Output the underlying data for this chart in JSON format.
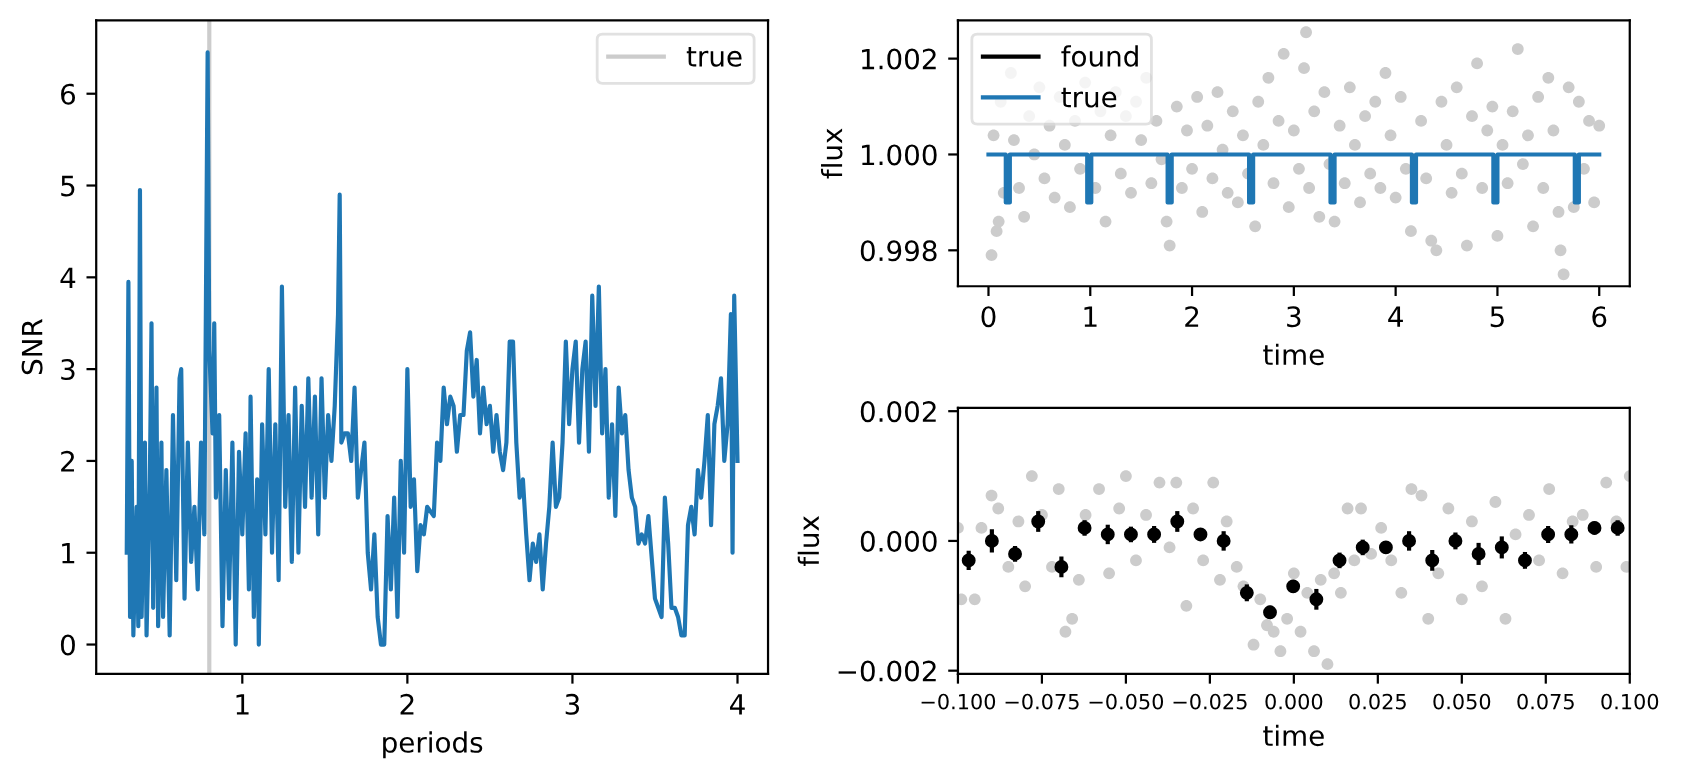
{
  "chart_data": [
    {
      "type": "line",
      "xlabel": "periods",
      "ylabel": "SNR",
      "xlim": [
        0.115,
        4.185
      ],
      "ylim": [
        -0.32,
        6.8
      ],
      "xticks": [
        1,
        2,
        3,
        4
      ],
      "yticks": [
        0,
        1,
        2,
        3,
        4,
        5,
        6
      ],
      "legend": "top right",
      "series": [
        {
          "name": "true",
          "color": "#cccccc",
          "x": [
            0.8,
            0.8
          ],
          "values": [
            -0.32,
            6.8
          ]
        },
        {
          "color": "#1f77b4",
          "x": [
            0.3,
            0.31,
            0.32,
            0.33,
            0.34,
            0.36,
            0.37,
            0.38,
            0.39,
            0.41,
            0.42,
            0.44,
            0.45,
            0.46,
            0.48,
            0.49,
            0.51,
            0.52,
            0.54,
            0.56,
            0.58,
            0.6,
            0.62,
            0.63,
            0.65,
            0.67,
            0.69,
            0.71,
            0.73,
            0.75,
            0.77,
            0.79,
            0.8,
            0.82,
            0.83,
            0.84,
            0.86,
            0.88,
            0.9,
            0.92,
            0.94,
            0.96,
            0.98,
            1.0,
            1.02,
            1.04,
            1.05,
            1.07,
            1.09,
            1.1,
            1.12,
            1.14,
            1.16,
            1.18,
            1.2,
            1.22,
            1.24,
            1.26,
            1.28,
            1.3,
            1.32,
            1.34,
            1.36,
            1.38,
            1.4,
            1.42,
            1.44,
            1.46,
            1.48,
            1.5,
            1.52,
            1.54,
            1.56,
            1.58,
            1.59,
            1.6,
            1.62,
            1.64,
            1.66,
            1.68,
            1.7,
            1.72,
            1.74,
            1.76,
            1.78,
            1.8,
            1.82,
            1.84,
            1.86,
            1.88,
            1.9,
            1.92,
            1.94,
            1.96,
            1.98,
            2.0,
            2.02,
            2.04,
            2.06,
            2.08,
            2.1,
            2.12,
            2.16,
            2.18,
            2.2,
            2.22,
            2.24,
            2.26,
            2.28,
            2.3,
            2.32,
            2.34,
            2.36,
            2.38,
            2.4,
            2.42,
            2.44,
            2.46,
            2.48,
            2.5,
            2.52,
            2.54,
            2.56,
            2.58,
            2.6,
            2.62,
            2.64,
            2.66,
            2.68,
            2.7,
            2.72,
            2.74,
            2.76,
            2.78,
            2.8,
            2.82,
            2.84,
            2.86,
            2.88,
            2.9,
            2.92,
            2.94,
            2.96,
            2.98,
            3.0,
            3.02,
            3.04,
            3.06,
            3.08,
            3.1,
            3.12,
            3.14,
            3.16,
            3.18,
            3.2,
            3.22,
            3.24,
            3.26,
            3.28,
            3.3,
            3.32,
            3.34,
            3.36,
            3.38,
            3.4,
            3.42,
            3.44,
            3.46,
            3.5,
            3.52,
            3.54,
            3.56,
            3.58,
            3.6,
            3.62,
            3.64,
            3.66,
            3.68,
            3.7,
            3.72,
            3.74,
            3.76,
            3.78,
            3.8,
            3.82,
            3.84,
            3.86,
            3.88,
            3.9,
            3.92,
            3.94,
            3.96,
            3.97,
            3.98,
            4.0
          ],
          "values": [
            1.0,
            3.95,
            0.3,
            2.0,
            0.1,
            1.5,
            0.2,
            4.95,
            0.3,
            2.2,
            0.1,
            1.8,
            3.5,
            0.4,
            2.8,
            0.2,
            2.2,
            0.3,
            1.9,
            0.1,
            2.5,
            0.7,
            2.9,
            3.0,
            0.5,
            2.2,
            0.9,
            1.5,
            0.6,
            2.2,
            1.2,
            6.45,
            3.2,
            2.3,
            3.5,
            1.6,
            2.5,
            0.2,
            1.9,
            0.5,
            2.2,
            0.0,
            2.1,
            1.2,
            2.3,
            0.6,
            2.7,
            0.3,
            1.8,
            0.0,
            2.4,
            1.2,
            3.0,
            1.0,
            2.4,
            0.7,
            3.9,
            1.5,
            2.5,
            0.9,
            2.8,
            1.0,
            2.6,
            1.5,
            2.9,
            1.6,
            2.7,
            1.2,
            2.9,
            1.6,
            2.5,
            2.0,
            2.6,
            3.6,
            4.9,
            2.2,
            2.3,
            2.3,
            2.0,
            2.8,
            1.6,
            1.9,
            2.2,
            1.0,
            0.6,
            1.2,
            0.3,
            0.0,
            0.0,
            1.4,
            0.6,
            1.6,
            0.3,
            2.0,
            1.0,
            3.0,
            1.5,
            1.8,
            0.8,
            1.3,
            1.2,
            1.5,
            1.4,
            2.2,
            2.0,
            2.8,
            2.4,
            2.7,
            2.6,
            2.1,
            2.5,
            2.5,
            3.2,
            3.4,
            2.7,
            3.1,
            2.3,
            2.8,
            2.4,
            2.6,
            2.1,
            2.5,
            2.1,
            1.9,
            2.2,
            3.3,
            3.3,
            2.2,
            1.6,
            1.8,
            1.2,
            0.7,
            1.1,
            0.9,
            1.2,
            0.6,
            1.1,
            1.5,
            2.2,
            1.5,
            1.6,
            2.2,
            3.3,
            2.4,
            3.0,
            3.3,
            2.2,
            3.0,
            3.3,
            2.1,
            3.8,
            2.6,
            3.9,
            2.3,
            3.0,
            1.6,
            2.4,
            1.4,
            2.8,
            2.3,
            2.5,
            1.9,
            1.6,
            1.5,
            1.1,
            1.2,
            1.1,
            1.4,
            0.5,
            0.4,
            0.3,
            1.6,
            1.1,
            0.4,
            0.4,
            0.3,
            0.1,
            0.1,
            1.3,
            1.5,
            1.2,
            1.9,
            1.6,
            2.0,
            2.5,
            1.3,
            2.4,
            2.6,
            2.9,
            2.0,
            2.4,
            3.6,
            1.0,
            3.8,
            2.0
          ]
        }
      ]
    },
    {
      "type": "scatter",
      "xlabel": "time",
      "ylabel": "flux",
      "xlim": [
        -0.3,
        6.3
      ],
      "ylim": [
        0.99725,
        1.0028
      ],
      "xticks": [
        0,
        1,
        2,
        3,
        4,
        5,
        6
      ],
      "yticks": [
        {
          "value": 0.998,
          "label": "0.998"
        },
        {
          "value": 1.0,
          "label": "1.000"
        },
        {
          "value": 1.002,
          "label": "1.002"
        }
      ],
      "legend": "top left",
      "series": [
        {
          "color": "#cccccc",
          "marker": "circle",
          "x": [
            0.03,
            0.05,
            0.08,
            0.1,
            0.12,
            0.15,
            0.22,
            0.25,
            0.3,
            0.35,
            0.4,
            0.45,
            0.5,
            0.55,
            0.6,
            0.65,
            0.7,
            0.75,
            0.8,
            0.85,
            0.9,
            0.95,
            1.05,
            1.1,
            1.15,
            1.2,
            1.25,
            1.3,
            1.35,
            1.4,
            1.45,
            1.5,
            1.55,
            1.6,
            1.65,
            1.7,
            1.75,
            1.78,
            1.85,
            1.9,
            1.95,
            2.0,
            2.05,
            2.1,
            2.15,
            2.2,
            2.25,
            2.3,
            2.35,
            2.4,
            2.45,
            2.5,
            2.55,
            2.62,
            2.65,
            2.7,
            2.75,
            2.8,
            2.85,
            2.9,
            2.95,
            3.0,
            3.05,
            3.1,
            3.12,
            3.15,
            3.2,
            3.25,
            3.3,
            3.35,
            3.4,
            3.45,
            3.5,
            3.55,
            3.6,
            3.65,
            3.7,
            3.75,
            3.8,
            3.85,
            3.9,
            3.95,
            4.0,
            4.05,
            4.1,
            4.15,
            4.25,
            4.3,
            4.35,
            4.4,
            4.45,
            4.5,
            4.55,
            4.6,
            4.65,
            4.7,
            4.75,
            4.8,
            4.85,
            4.9,
            4.95,
            5.0,
            5.05,
            5.1,
            5.15,
            5.2,
            5.25,
            5.3,
            5.35,
            5.4,
            5.45,
            5.5,
            5.55,
            5.6,
            5.62,
            5.65,
            5.7,
            5.75,
            5.8,
            5.85,
            5.9,
            5.95,
            6.0
          ],
          "values": [
            0.9979,
            1.0004,
            0.9984,
            0.9986,
            1.0011,
            0.9992,
            1.0017,
            1.0003,
            0.9993,
            0.9987,
            1.0008,
            1.0,
            1.0014,
            0.9995,
            1.0006,
            0.9991,
            1.0012,
            1.0002,
            0.9989,
            1.0007,
            0.9997,
            1.0015,
            0.9993,
            1.0009,
            0.9986,
            1.0004,
            1.0013,
            0.9996,
            1.0008,
            0.9992,
            1.0011,
            1.0003,
            1.0016,
            0.9994,
            1.0007,
            0.9999,
            0.9986,
            0.9981,
            1.001,
            0.9993,
            1.0005,
            0.9997,
            1.0012,
            0.9988,
            1.0006,
            0.9995,
            1.0013,
            1.0001,
            0.9992,
            1.0009,
            0.999,
            1.0004,
            0.9996,
            0.9985,
            1.0011,
            1.0002,
            1.0016,
            0.9994,
            1.0007,
            1.0021,
            0.9989,
            1.0005,
            0.9997,
            1.0018,
            1.00255,
            0.9993,
            1.0009,
            0.9987,
            1.0013,
            0.9998,
            0.9986,
            1.0006,
            0.9994,
            1.0014,
            1.0002,
            0.999,
            1.0008,
            0.9996,
            1.0011,
            0.9993,
            1.0017,
            1.0004,
            0.9991,
            1.0012,
            0.9997,
            0.9984,
            1.0007,
            0.9995,
            0.9982,
            0.998,
            1.0011,
            1.0002,
            0.9992,
            1.0014,
            0.9996,
            0.9981,
            1.0008,
            1.0019,
            0.9993,
            1.0005,
            1.001,
            0.9983,
            1.0002,
            0.9994,
            1.0009,
            1.0022,
            0.9998,
            1.0004,
            0.9985,
            1.0012,
            0.9993,
            1.0016,
            1.0005,
            0.9988,
            0.998,
            0.9975,
            1.0014,
            0.9989,
            1.0011,
            0.9997,
            1.0007,
            0.999,
            1.0006
          ]
        },
        {
          "type": "line",
          "name": "found",
          "color": "#000000"
        },
        {
          "type": "line",
          "name": "true",
          "color": "#1f77b4",
          "x": [
            0,
            0.17,
            0.17,
            0.21,
            0.21,
            0.97,
            0.97,
            1.01,
            1.01,
            1.76,
            1.76,
            1.8,
            1.8,
            2.56,
            2.56,
            2.6,
            2.6,
            3.36,
            3.36,
            3.4,
            3.4,
            4.16,
            4.16,
            4.2,
            4.2,
            4.96,
            4.96,
            5.0,
            5.0,
            5.76,
            5.76,
            5.8,
            5.8,
            6.0
          ],
          "values": [
            1.0,
            1.0,
            0.999,
            0.999,
            1.0,
            1.0,
            0.999,
            0.999,
            1.0,
            1.0,
            0.999,
            0.999,
            1.0,
            1.0,
            0.999,
            0.999,
            1.0,
            1.0,
            0.999,
            0.999,
            1.0,
            1.0,
            0.999,
            0.999,
            1.0,
            1.0,
            0.999,
            0.999,
            1.0,
            1.0,
            0.999,
            0.999,
            1.0,
            1.0
          ]
        }
      ]
    },
    {
      "type": "scatter",
      "xlabel": "time",
      "ylabel": "flux",
      "xlim": [
        -0.1,
        0.1
      ],
      "ylim": [
        -0.00205,
        0.00205
      ],
      "xticks": [
        {
          "value": -0.1,
          "label": "−0.100"
        },
        {
          "value": -0.075,
          "label": "−0.075"
        },
        {
          "value": -0.05,
          "label": "−0.050"
        },
        {
          "value": -0.025,
          "label": "−0.025"
        },
        {
          "value": 0.0,
          "label": "0.000"
        },
        {
          "value": 0.025,
          "label": "0.025"
        },
        {
          "value": 0.05,
          "label": "0.050"
        },
        {
          "value": 0.075,
          "label": "0.075"
        },
        {
          "value": 0.1,
          "label": "0.100"
        }
      ],
      "yticks": [
        {
          "value": -0.002,
          "label": "−0.002"
        },
        {
          "value": 0.0,
          "label": "0.000"
        },
        {
          "value": 0.002,
          "label": "0.002"
        }
      ],
      "series": [
        {
          "color": "#cccccc",
          "marker": "circle",
          "x": [
            -0.1,
            -0.099,
            -0.095,
            -0.093,
            -0.09,
            -0.088,
            -0.085,
            -0.082,
            -0.08,
            -0.078,
            -0.075,
            -0.072,
            -0.07,
            -0.068,
            -0.066,
            -0.064,
            -0.062,
            -0.058,
            -0.055,
            -0.052,
            -0.05,
            -0.047,
            -0.044,
            -0.04,
            -0.037,
            -0.035,
            -0.032,
            -0.03,
            -0.027,
            -0.024,
            -0.022,
            -0.02,
            -0.017,
            -0.015,
            -0.012,
            -0.01,
            -0.008,
            -0.006,
            -0.004,
            -0.002,
            0.0,
            0.002,
            0.004,
            0.006,
            0.008,
            0.01,
            0.012,
            0.014,
            0.016,
            0.018,
            0.02,
            0.023,
            0.026,
            0.029,
            0.032,
            0.035,
            0.038,
            0.04,
            0.043,
            0.046,
            0.05,
            0.053,
            0.056,
            0.06,
            0.063,
            0.066,
            0.07,
            0.073,
            0.076,
            0.08,
            0.083,
            0.086,
            0.09,
            0.093,
            0.096,
            0.099,
            0.1
          ],
          "values": [
            0.0002,
            -0.0009,
            -0.0009,
            0.0002,
            0.0007,
            0.0005,
            -0.0004,
            0.0003,
            -0.0007,
            0.001,
            0.0004,
            -0.0004,
            0.0008,
            -0.0014,
            -0.0012,
            -0.0006,
            0.0004,
            0.0008,
            -0.0005,
            0.0005,
            0.001,
            -0.0003,
            0.0004,
            0.0009,
            -0.0001,
            0.0009,
            -0.001,
            0.0005,
            -0.0003,
            0.0009,
            -0.0006,
            0.0003,
            -0.0004,
            -0.0007,
            -0.0016,
            -0.0009,
            -0.0013,
            -0.0014,
            -0.0017,
            -0.0012,
            -0.0005,
            -0.0014,
            -0.0008,
            -0.0017,
            -0.0006,
            -0.0019,
            -0.0005,
            -0.0008,
            0.0005,
            -0.0003,
            0.0005,
            -0.0002,
            0.0002,
            -0.0003,
            -0.0008,
            0.0008,
            0.0007,
            -0.0012,
            -0.0005,
            0.0005,
            -0.0009,
            0.0003,
            -0.0007,
            0.0006,
            -0.0012,
            0.0001,
            0.0004,
            -0.0003,
            0.0008,
            -0.0005,
            0.0003,
            0.0004,
            -0.0004,
            0.0009,
            0.0003,
            -0.0004,
            0.001
          ]
        },
        {
          "color": "#000000",
          "marker": "circle",
          "x": [
            -0.0968,
            -0.0899,
            -0.083,
            -0.0761,
            -0.0692,
            -0.0623,
            -0.0554,
            -0.0485,
            -0.0416,
            -0.0347,
            -0.0278,
            -0.0209,
            -0.014,
            -0.0071,
            -0.0002,
            0.0067,
            0.0136,
            0.0205,
            0.0274,
            0.0343,
            0.0412,
            0.0481,
            0.055,
            0.0619,
            0.0688,
            0.0757,
            0.0826,
            0.0895,
            0.0964
          ],
          "values": [
            -0.0003,
            0.0,
            -0.0002,
            0.0003,
            -0.0004,
            0.0002,
            0.0001,
            0.0001,
            0.0001,
            0.0003,
            0.0001,
            0.0,
            -0.0008,
            -0.0011,
            -0.0007,
            -0.0009,
            -0.0003,
            -0.0001,
            -0.0001,
            0.0,
            -0.0003,
            0.0,
            -0.0002,
            -0.0001,
            -0.0003,
            0.0001,
            0.0001,
            0.0002,
            0.0002
          ],
          "errors": [
            0.00015,
            0.00018,
            0.00012,
            0.00016,
            0.00016,
            0.00012,
            0.00015,
            0.00012,
            0.00013,
            0.00016,
            8e-05,
            0.00015,
            0.00013,
            0.0001,
            0.0001,
            0.00016,
            0.00012,
            0.00012,
            3e-05,
            0.00015,
            0.00016,
            0.00013,
            0.00017,
            0.00017,
            0.00013,
            0.00013,
            0.00014,
            0.0001,
            0.00012
          ]
        }
      ]
    }
  ]
}
